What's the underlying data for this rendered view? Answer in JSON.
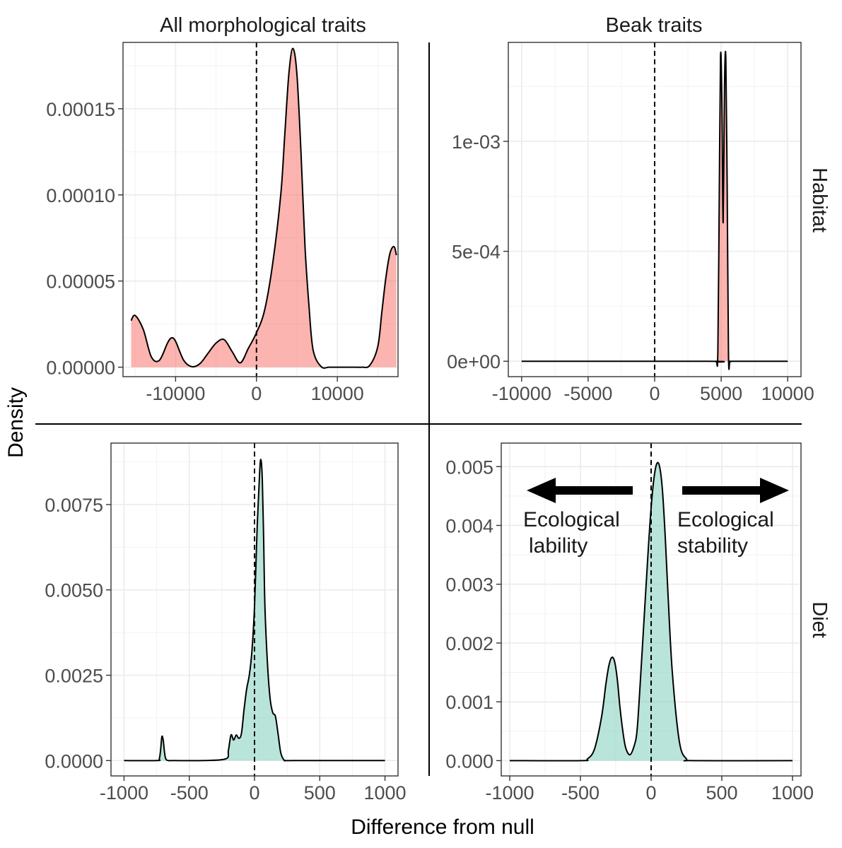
{
  "chart_data": {
    "type": "area",
    "xlabel": "Difference from null",
    "ylabel": "Density",
    "column_strips": [
      "All morphological traits",
      "Beak traits"
    ],
    "row_strips": [
      "Habitat",
      "Diet"
    ],
    "reference_line_x": 0,
    "grid": true,
    "annotations": {
      "left_arrow_label": [
        "Ecological",
        "lability"
      ],
      "right_arrow_label": [
        "Ecological",
        "stability"
      ]
    },
    "panels": [
      {
        "id": "habitat-all",
        "row": "Habitat",
        "column": "All morphological traits",
        "fill": "#f8766d",
        "xlim": [
          -16500,
          17500
        ],
        "ylim": [
          -5.5e-06,
          0.0001885
        ],
        "x_ticks": [
          -10000,
          0,
          10000
        ],
        "x_tick_labels": [
          "-10000",
          "0",
          "10000"
        ],
        "y_ticks": [
          0,
          5e-05,
          0.0001,
          0.00015
        ],
        "y_tick_labels": [
          "0.00000",
          "0.00005",
          "0.00010",
          "0.00015"
        ],
        "x": [
          -15500,
          -15000,
          -14000,
          -13000,
          -12000,
          -11000,
          -10500,
          -10000,
          -9000,
          -8000,
          -7000,
          -6000,
          -5000,
          -4000,
          -3000,
          -2000,
          -1000,
          0,
          1000,
          2000,
          3000,
          3500,
          4000,
          4500,
          5000,
          5500,
          6000,
          6500,
          7000,
          8000,
          9000,
          10000,
          11000,
          12000,
          13000,
          14000,
          15000,
          15500,
          16000,
          16500,
          17000,
          17300
        ],
        "y": [
          2.7e-05,
          3e-05,
          2.2e-05,
          6e-06,
          4e-06,
          1.4e-05,
          1.7e-05,
          1.5e-05,
          4e-06,
          3e-07,
          2e-06,
          8e-06,
          1.4e-05,
          1.6e-05,
          9e-06,
          2.5e-06,
          1.1e-05,
          2e-05,
          3.3e-05,
          6e-05,
          0.0001,
          0.000135,
          0.00017,
          0.000185,
          0.00017,
          0.000125,
          7e-05,
          3.5e-05,
          1e-05,
          3e-07,
          0,
          0,
          0,
          0,
          0,
          1e-06,
          1.2e-05,
          3.2e-05,
          5.2e-05,
          6.6e-05,
          7e-05,
          6.5e-05
        ]
      },
      {
        "id": "habitat-beak",
        "row": "Habitat",
        "column": "Beak traits",
        "fill": "#f8766d",
        "xlim": [
          -11000,
          11000
        ],
        "ylim": [
          -7e-05,
          0.00145
        ],
        "x_ticks": [
          -10000,
          -5000,
          0,
          5000,
          10000
        ],
        "x_tick_labels": [
          "-10000",
          "-5000",
          "0",
          "5000",
          "10000"
        ],
        "y_ticks": [
          0,
          0.0005,
          0.001
        ],
        "y_tick_labels": [
          "0e+00",
          "5e-04",
          "1e-03"
        ],
        "x": [
          -10000,
          4000,
          4600,
          4750,
          4850,
          4950,
          5050,
          5150,
          5250,
          5350,
          5450,
          5550,
          5650,
          5800,
          6100,
          10000
        ],
        "y": [
          0,
          0,
          0,
          4e-05,
          0.0007,
          0.00138,
          0.0012,
          0.00063,
          0.00125,
          0.00138,
          0.0008,
          3e-05,
          0,
          0,
          0,
          0
        ]
      },
      {
        "id": "diet-all",
        "row": "Diet",
        "column": "All morphological traits",
        "fill": "#7fcdbb",
        "xlim": [
          -1100,
          1100
        ],
        "ylim": [
          -0.00045,
          0.0093
        ],
        "x_ticks": [
          -1000,
          -500,
          0,
          500,
          1000
        ],
        "x_tick_labels": [
          "-1000",
          "-500",
          "0",
          "500",
          "1000"
        ],
        "y_ticks": [
          0,
          0.0025,
          0.005,
          0.0075
        ],
        "y_tick_labels": [
          "0.0000",
          "0.0025",
          "0.0050",
          "0.0075"
        ],
        "x": [
          -1000,
          -750,
          -730,
          -720,
          -710,
          -700,
          -690,
          -680,
          -660,
          -620,
          -400,
          -220,
          -200,
          -180,
          -160,
          -140,
          -120,
          -100,
          -80,
          -60,
          -40,
          -20,
          0,
          20,
          40,
          50,
          60,
          70,
          80,
          100,
          120,
          140,
          160,
          180,
          200,
          220,
          240,
          300,
          1000
        ],
        "y": [
          0,
          0,
          5e-05,
          0.0003,
          0.0007,
          0.0006,
          0.00025,
          5e-05,
          0,
          0,
          0,
          5e-05,
          0.0003,
          0.00075,
          0.0006,
          0.00075,
          0.00065,
          0.0008,
          0.0015,
          0.0021,
          0.0025,
          0.0032,
          0.0045,
          0.0068,
          0.0085,
          0.0088,
          0.0082,
          0.0065,
          0.0045,
          0.0028,
          0.0018,
          0.0014,
          0.0013,
          0.0008,
          0.00025,
          5e-05,
          0,
          0,
          0
        ]
      },
      {
        "id": "diet-beak",
        "row": "Diet",
        "column": "Beak traits",
        "fill": "#7fcdbb",
        "xlim": [
          -1060,
          1060
        ],
        "ylim": [
          -0.00026,
          0.0054
        ],
        "x_ticks": [
          -1000,
          -500,
          0,
          500,
          1000
        ],
        "x_tick_labels": [
          "-1000",
          "-500",
          "0",
          "500",
          "1000"
        ],
        "y_ticks": [
          0,
          0.001,
          0.002,
          0.003,
          0.004,
          0.005
        ],
        "y_tick_labels": [
          "0.000",
          "0.001",
          "0.002",
          "0.003",
          "0.004",
          "0.005"
        ],
        "x": [
          -1000,
          -500,
          -450,
          -400,
          -350,
          -320,
          -300,
          -280,
          -260,
          -240,
          -220,
          -200,
          -180,
          -150,
          -120,
          -100,
          -80,
          -50,
          -20,
          0,
          20,
          40,
          60,
          80,
          100,
          120,
          150,
          200,
          250,
          300,
          1000
        ],
        "y": [
          0,
          0,
          3e-05,
          0.0002,
          0.00075,
          0.0013,
          0.0016,
          0.00175,
          0.0017,
          0.0014,
          0.0009,
          0.0005,
          0.00022,
          0.0001,
          0.00025,
          0.0005,
          0.0012,
          0.0024,
          0.0036,
          0.0043,
          0.0048,
          0.00505,
          0.005,
          0.0046,
          0.0038,
          0.0028,
          0.0015,
          0.00032,
          3e-05,
          0,
          0
        ]
      }
    ]
  }
}
